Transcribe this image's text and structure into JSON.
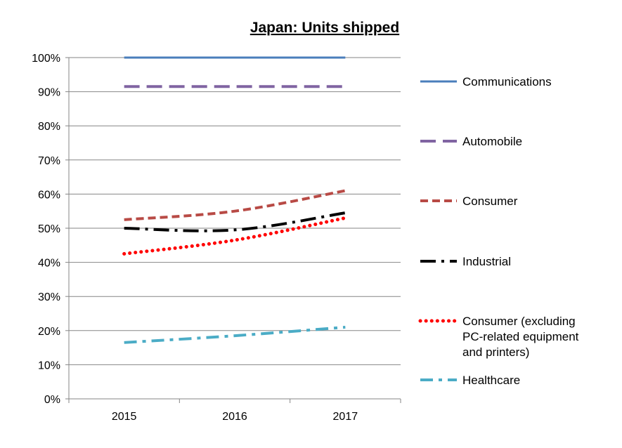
{
  "chart_data": {
    "type": "line",
    "title": "Japan: Units shipped",
    "xlabel": "",
    "ylabel": "",
    "categories": [
      "2015",
      "2016",
      "2017"
    ],
    "ylim": [
      0,
      100
    ],
    "yticks": [
      "0%",
      "10%",
      "20%",
      "30%",
      "40%",
      "50%",
      "60%",
      "70%",
      "80%",
      "90%",
      "100%"
    ],
    "grid": "horizontal",
    "legend_position": "right",
    "series": [
      {
        "name": "Communications",
        "values": [
          100,
          100,
          100
        ],
        "color": "#4a7ebb",
        "style": "solid"
      },
      {
        "name": "Automobile",
        "values": [
          91.5,
          91.5,
          91.5
        ],
        "color": "#8064a2",
        "style": "long-dash"
      },
      {
        "name": "Consumer",
        "values": [
          52.5,
          55,
          61
        ],
        "color": "#b84a45",
        "style": "dash"
      },
      {
        "name": "Industrial",
        "values": [
          50,
          49.5,
          54.5
        ],
        "color": "#000000",
        "style": "dash-dot"
      },
      {
        "name": "Consumer (excluding PC-related equipment and printers)",
        "legend_lines": [
          "Consumer (excluding",
          "PC-related equipment",
          "and printers)"
        ],
        "values": [
          42.5,
          46.5,
          53
        ],
        "color": "#ff0000",
        "style": "dot"
      },
      {
        "name": "Healthcare",
        "values": [
          16.5,
          18.5,
          21
        ],
        "color": "#4bacc6",
        "style": "long-dash-dot"
      }
    ]
  }
}
